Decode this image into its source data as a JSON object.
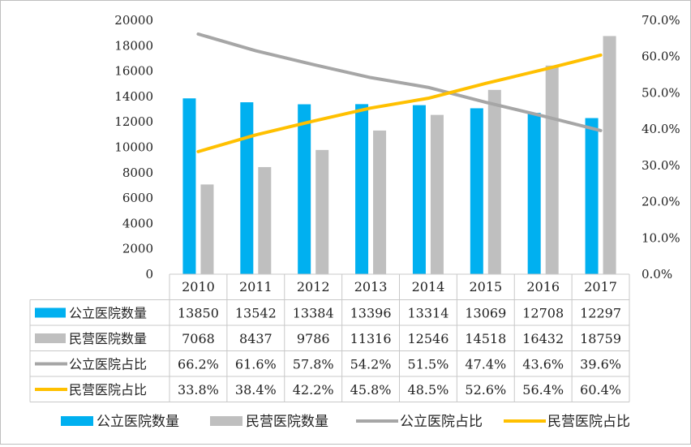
{
  "chart_data": {
    "type": "bar",
    "categories": [
      "2010",
      "2011",
      "2012",
      "2013",
      "2014",
      "2015",
      "2016",
      "2017"
    ],
    "series": [
      {
        "name": "公立医院数量",
        "kind": "bar",
        "axis": "left",
        "color": "#00B0F0",
        "values": [
          13850,
          13542,
          13384,
          13396,
          13314,
          13069,
          12708,
          12297
        ],
        "labels": [
          "13850",
          "13542",
          "13384",
          "13396",
          "13314",
          "13069",
          "12708",
          "12297"
        ]
      },
      {
        "name": "民营医院数量",
        "kind": "bar",
        "axis": "left",
        "color": "#BFBFBF",
        "values": [
          7068,
          8437,
          9786,
          11316,
          12546,
          14518,
          16432,
          18759
        ],
        "labels": [
          "7068",
          "8437",
          "9786",
          "11316",
          "12546",
          "14518",
          "16432",
          "18759"
        ]
      },
      {
        "name": "公立医院占比",
        "kind": "line",
        "axis": "right",
        "color": "#A6A6A6",
        "values": [
          66.2,
          61.6,
          57.8,
          54.2,
          51.5,
          47.4,
          43.6,
          39.6
        ],
        "labels": [
          "66.2%",
          "61.6%",
          "57.8%",
          "54.2%",
          "51.5%",
          "47.4%",
          "43.6%",
          "39.6%"
        ]
      },
      {
        "name": "民营医院占比",
        "kind": "line",
        "axis": "right",
        "color": "#FFC000",
        "values": [
          33.8,
          38.4,
          42.2,
          45.8,
          48.5,
          52.6,
          56.4,
          60.4
        ],
        "labels": [
          "33.8%",
          "38.4%",
          "42.2%",
          "45.8%",
          "48.5%",
          "52.6%",
          "56.4%",
          "60.4%"
        ]
      }
    ],
    "y_left": {
      "min": 0,
      "max": 20000,
      "step": 2000,
      "ticks": [
        "0",
        "2000",
        "4000",
        "6000",
        "8000",
        "10000",
        "12000",
        "14000",
        "16000",
        "18000",
        "20000"
      ]
    },
    "y_right": {
      "min": 0,
      "max": 70,
      "step": 10,
      "ticks": [
        "0.0%",
        "10.0%",
        "20.0%",
        "30.0%",
        "40.0%",
        "50.0%",
        "60.0%",
        "70.0%"
      ]
    },
    "grid": false,
    "data_table": true,
    "legend_position": "bottom"
  }
}
